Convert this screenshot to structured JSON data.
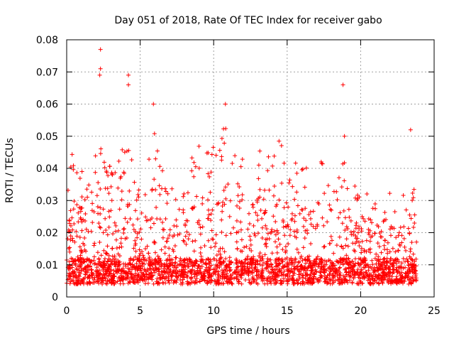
{
  "chart_data": {
    "type": "scatter",
    "title": "Day 051 of 2018, Rate Of TEC Index for receiver gabo",
    "xlabel": "GPS time / hours",
    "ylabel": "ROTI / TECUs",
    "xlim": [
      0,
      25
    ],
    "ylim": [
      0,
      0.08
    ],
    "x_ticks": [
      0,
      5,
      10,
      15,
      20,
      25
    ],
    "y_ticks": [
      0,
      0.01,
      0.02,
      0.03,
      0.04,
      0.05,
      0.06,
      0.07,
      0.08
    ],
    "x_tick_labels": [
      "0",
      "5",
      "10",
      "15",
      "20",
      "25"
    ],
    "y_tick_labels": [
      "0",
      "0.01",
      "0.02",
      "0.03",
      "0.04",
      "0.05",
      "0.06",
      "0.07",
      "0.08"
    ],
    "grid": true,
    "marker": "plus",
    "color": "#ff0000",
    "notable_points": [
      {
        "x": 2.3,
        "y": 0.077
      },
      {
        "x": 2.3,
        "y": 0.071
      },
      {
        "x": 2.25,
        "y": 0.069
      },
      {
        "x": 4.2,
        "y": 0.069
      },
      {
        "x": 4.2,
        "y": 0.066
      },
      {
        "x": 5.9,
        "y": 0.06
      },
      {
        "x": 10.8,
        "y": 0.06
      },
      {
        "x": 18.8,
        "y": 0.066
      },
      {
        "x": 18.9,
        "y": 0.05
      },
      {
        "x": 23.4,
        "y": 0.052
      }
    ],
    "envelope": [
      {
        "x": 0.0,
        "peak": 0.03
      },
      {
        "x": 0.3,
        "peak": 0.046
      },
      {
        "x": 0.7,
        "peak": 0.043
      },
      {
        "x": 1.2,
        "peak": 0.038
      },
      {
        "x": 1.7,
        "peak": 0.036
      },
      {
        "x": 2.2,
        "peak": 0.054
      },
      {
        "x": 2.7,
        "peak": 0.04
      },
      {
        "x": 3.2,
        "peak": 0.043
      },
      {
        "x": 3.7,
        "peak": 0.044
      },
      {
        "x": 4.2,
        "peak": 0.057
      },
      {
        "x": 4.7,
        "peak": 0.038
      },
      {
        "x": 5.2,
        "peak": 0.03
      },
      {
        "x": 5.9,
        "peak": 0.055
      },
      {
        "x": 6.4,
        "peak": 0.041
      },
      {
        "x": 6.9,
        "peak": 0.034
      },
      {
        "x": 7.4,
        "peak": 0.037
      },
      {
        "x": 7.9,
        "peak": 0.031
      },
      {
        "x": 8.4,
        "peak": 0.044
      },
      {
        "x": 8.9,
        "peak": 0.05
      },
      {
        "x": 9.4,
        "peak": 0.047
      },
      {
        "x": 9.9,
        "peak": 0.048
      },
      {
        "x": 10.4,
        "peak": 0.052
      },
      {
        "x": 10.9,
        "peak": 0.056
      },
      {
        "x": 11.4,
        "peak": 0.05
      },
      {
        "x": 11.9,
        "peak": 0.045
      },
      {
        "x": 12.4,
        "peak": 0.044
      },
      {
        "x": 12.9,
        "peak": 0.052
      },
      {
        "x": 13.4,
        "peak": 0.043
      },
      {
        "x": 13.9,
        "peak": 0.05
      },
      {
        "x": 14.4,
        "peak": 0.053
      },
      {
        "x": 14.9,
        "peak": 0.041
      },
      {
        "x": 15.4,
        "peak": 0.042
      },
      {
        "x": 15.9,
        "peak": 0.043
      },
      {
        "x": 16.4,
        "peak": 0.042
      },
      {
        "x": 16.9,
        "peak": 0.04
      },
      {
        "x": 17.4,
        "peak": 0.043
      },
      {
        "x": 17.9,
        "peak": 0.045
      },
      {
        "x": 18.4,
        "peak": 0.04
      },
      {
        "x": 18.9,
        "peak": 0.042
      },
      {
        "x": 19.4,
        "peak": 0.036
      },
      {
        "x": 19.9,
        "peak": 0.034
      },
      {
        "x": 20.4,
        "peak": 0.038
      },
      {
        "x": 20.9,
        "peak": 0.035
      },
      {
        "x": 21.3,
        "peak": 0.02
      },
      {
        "x": 21.7,
        "peak": 0.03
      },
      {
        "x": 22.2,
        "peak": 0.035
      },
      {
        "x": 22.7,
        "peak": 0.035
      },
      {
        "x": 23.2,
        "peak": 0.038
      },
      {
        "x": 23.5,
        "peak": 0.044
      },
      {
        "x": 23.8,
        "peak": 0.022
      }
    ],
    "baseline": 0.004,
    "dense_band": [
      0.004,
      0.012
    ],
    "x_range_data": [
      0,
      23.8
    ]
  }
}
